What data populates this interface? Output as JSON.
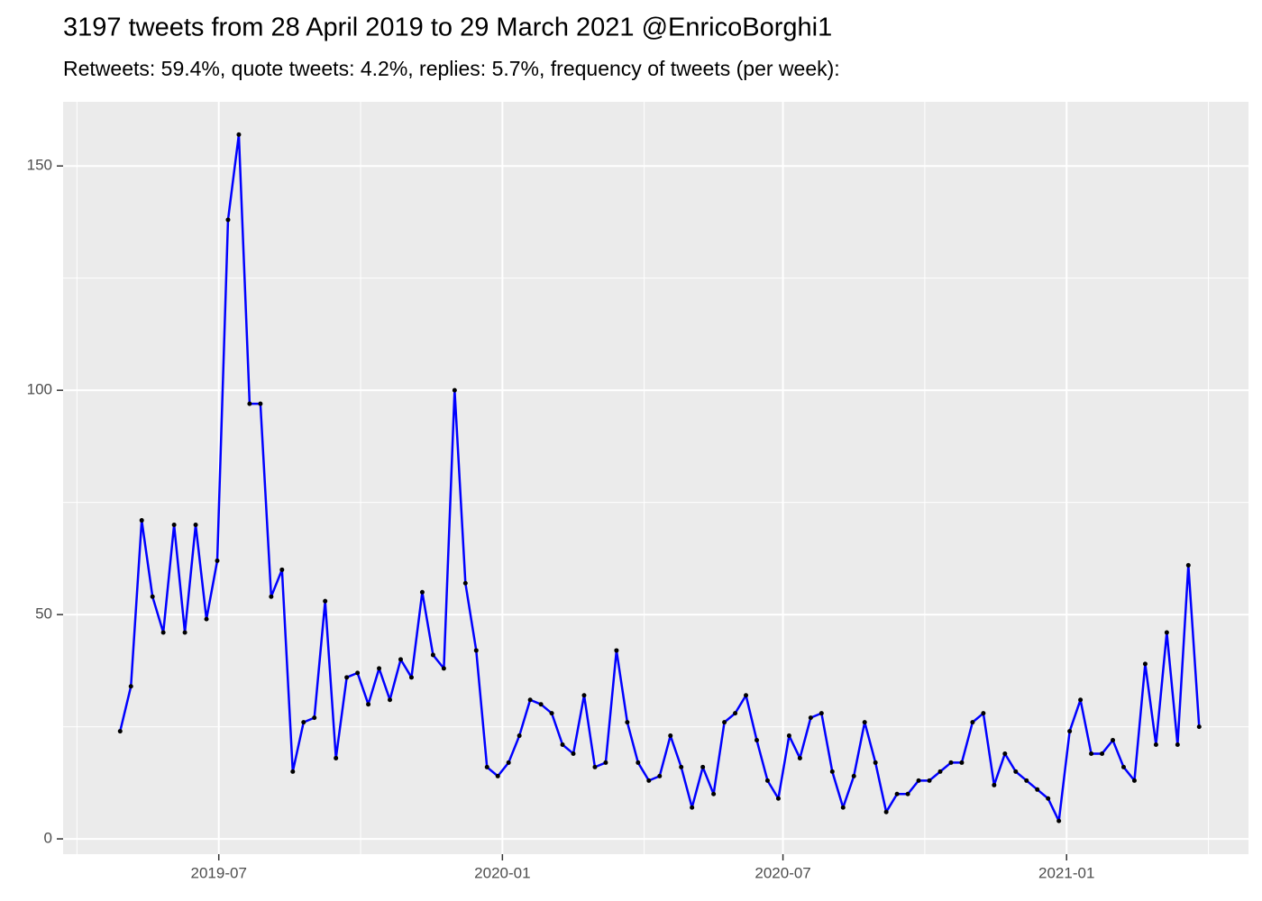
{
  "chart_data": {
    "type": "line",
    "title": "3197 tweets from 28 April 2019 to 29 March 2021 @EnricoBorghi1",
    "subtitle": "Retweets: 59.4%, quote tweets: 4.2%, replies: 5.7%, frequency of tweets (per week):",
    "x": [
      "2019-04-28",
      "2019-05-05",
      "2019-05-12",
      "2019-05-19",
      "2019-05-26",
      "2019-06-02",
      "2019-06-09",
      "2019-06-16",
      "2019-06-23",
      "2019-06-30",
      "2019-07-07",
      "2019-07-14",
      "2019-07-21",
      "2019-07-28",
      "2019-08-04",
      "2019-08-11",
      "2019-08-18",
      "2019-08-25",
      "2019-09-01",
      "2019-09-08",
      "2019-09-15",
      "2019-09-22",
      "2019-09-29",
      "2019-10-06",
      "2019-10-13",
      "2019-10-20",
      "2019-10-27",
      "2019-11-03",
      "2019-11-10",
      "2019-11-17",
      "2019-11-24",
      "2019-12-01",
      "2019-12-08",
      "2019-12-15",
      "2019-12-22",
      "2019-12-29",
      "2020-01-05",
      "2020-01-12",
      "2020-01-19",
      "2020-01-26",
      "2020-02-02",
      "2020-02-09",
      "2020-02-16",
      "2020-02-23",
      "2020-03-01",
      "2020-03-08",
      "2020-03-15",
      "2020-03-22",
      "2020-03-29",
      "2020-04-05",
      "2020-04-12",
      "2020-04-19",
      "2020-04-26",
      "2020-05-03",
      "2020-05-10",
      "2020-05-17",
      "2020-05-24",
      "2020-05-31",
      "2020-06-07",
      "2020-06-14",
      "2020-06-21",
      "2020-06-28",
      "2020-07-05",
      "2020-07-12",
      "2020-07-19",
      "2020-07-26",
      "2020-08-02",
      "2020-08-09",
      "2020-08-16",
      "2020-08-23",
      "2020-08-30",
      "2020-09-06",
      "2020-09-13",
      "2020-09-20",
      "2020-09-27",
      "2020-10-04",
      "2020-10-11",
      "2020-10-18",
      "2020-10-25",
      "2020-11-01",
      "2020-11-08",
      "2020-11-15",
      "2020-11-22",
      "2020-11-29",
      "2020-12-06",
      "2020-12-13",
      "2020-12-20",
      "2020-12-27",
      "2021-01-03",
      "2021-01-10",
      "2021-01-17",
      "2021-01-24",
      "2021-01-31",
      "2021-02-07",
      "2021-02-14",
      "2021-02-21",
      "2021-02-28",
      "2021-03-07",
      "2021-03-14",
      "2021-03-21",
      "2021-03-28"
    ],
    "values": [
      24,
      34,
      71,
      54,
      46,
      70,
      46,
      70,
      49,
      62,
      138,
      157,
      97,
      97,
      54,
      60,
      15,
      26,
      27,
      53,
      18,
      36,
      37,
      30,
      38,
      31,
      40,
      36,
      55,
      41,
      38,
      100,
      57,
      42,
      16,
      14,
      17,
      23,
      31,
      30,
      28,
      21,
      19,
      32,
      16,
      17,
      42,
      26,
      17,
      13,
      14,
      23,
      16,
      7,
      16,
      10,
      26,
      28,
      32,
      22,
      13,
      9,
      23,
      18,
      27,
      28,
      15,
      7,
      14,
      26,
      17,
      6,
      10,
      10,
      13,
      13,
      15,
      17,
      17,
      26,
      28,
      12,
      19,
      15,
      13,
      11,
      9,
      4,
      24,
      31,
      19,
      19,
      22,
      16,
      13,
      39,
      21,
      46,
      21,
      61,
      25
    ],
    "color": "#0000ff",
    "point_color": "#000000",
    "xlim": [
      "2019-03-22",
      "2021-04-29"
    ],
    "xticks": [
      {
        "value": "2019-07-01",
        "label": "2019-07"
      },
      {
        "value": "2020-01-01",
        "label": "2020-01"
      },
      {
        "value": "2020-07-01",
        "label": "2020-07"
      },
      {
        "value": "2021-01-01",
        "label": "2021-01"
      }
    ],
    "ylim": [
      -3.4,
      164.3
    ],
    "yticks": [
      0,
      50,
      100,
      150
    ],
    "grid": true
  }
}
